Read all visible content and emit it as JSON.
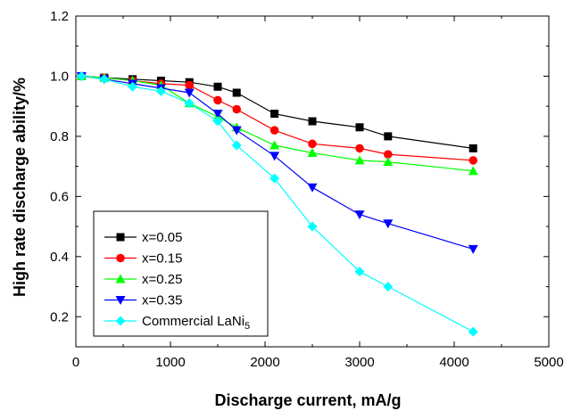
{
  "chart_data": {
    "type": "line",
    "xlabel": "Discharge current, mA/g",
    "ylabel": "High rate discharge ability/%",
    "xlim": [
      0,
      5000
    ],
    "ylim": [
      0.1,
      1.2
    ],
    "xticks": [
      "0",
      "1000",
      "2000",
      "3000",
      "4000",
      "5000"
    ],
    "yticks": [
      "0.2",
      "0.4",
      "0.6",
      "0.8",
      "1.0",
      "1.2"
    ],
    "grid": false,
    "legend_position": "bottom-left",
    "series": [
      {
        "name": "x=0.05",
        "color": "#000000",
        "marker": "square",
        "x": [
          60,
          300,
          600,
          900,
          1200,
          1500,
          1700,
          2100,
          2500,
          3000,
          3300,
          4200
        ],
        "y": [
          1.0,
          0.995,
          0.99,
          0.985,
          0.98,
          0.965,
          0.945,
          0.875,
          0.85,
          0.83,
          0.8,
          0.76
        ]
      },
      {
        "name": "x=0.15",
        "color": "#ff0000",
        "marker": "circle",
        "x": [
          60,
          300,
          600,
          900,
          1200,
          1500,
          1700,
          2100,
          2500,
          3000,
          3300,
          4200
        ],
        "y": [
          1.0,
          0.995,
          0.985,
          0.975,
          0.97,
          0.92,
          0.89,
          0.82,
          0.775,
          0.76,
          0.74,
          0.72
        ]
      },
      {
        "name": "x=0.25",
        "color": "#00ff00",
        "marker": "triangle-up",
        "x": [
          60,
          300,
          600,
          900,
          1200,
          1500,
          1700,
          2100,
          2500,
          3000,
          3300,
          4200
        ],
        "y": [
          1.0,
          0.995,
          0.985,
          0.97,
          0.91,
          0.865,
          0.83,
          0.77,
          0.745,
          0.72,
          0.715,
          0.685
        ]
      },
      {
        "name": "x=0.35",
        "color": "#0000ff",
        "marker": "triangle-down",
        "x": [
          60,
          300,
          600,
          900,
          1200,
          1500,
          1700,
          2100,
          2500,
          3000,
          3300,
          4200
        ],
        "y": [
          1.0,
          0.99,
          0.975,
          0.96,
          0.945,
          0.875,
          0.82,
          0.735,
          0.63,
          0.54,
          0.51,
          0.425
        ]
      },
      {
        "name": "Commercial LaNi",
        "name_subscript": "5",
        "color": "#00ffff",
        "marker": "diamond",
        "x": [
          60,
          300,
          600,
          900,
          1200,
          1500,
          1700,
          2100,
          2500,
          3000,
          3300,
          4200
        ],
        "y": [
          1.0,
          0.99,
          0.965,
          0.95,
          0.91,
          0.85,
          0.77,
          0.66,
          0.5,
          0.35,
          0.3,
          0.15
        ]
      }
    ]
  }
}
